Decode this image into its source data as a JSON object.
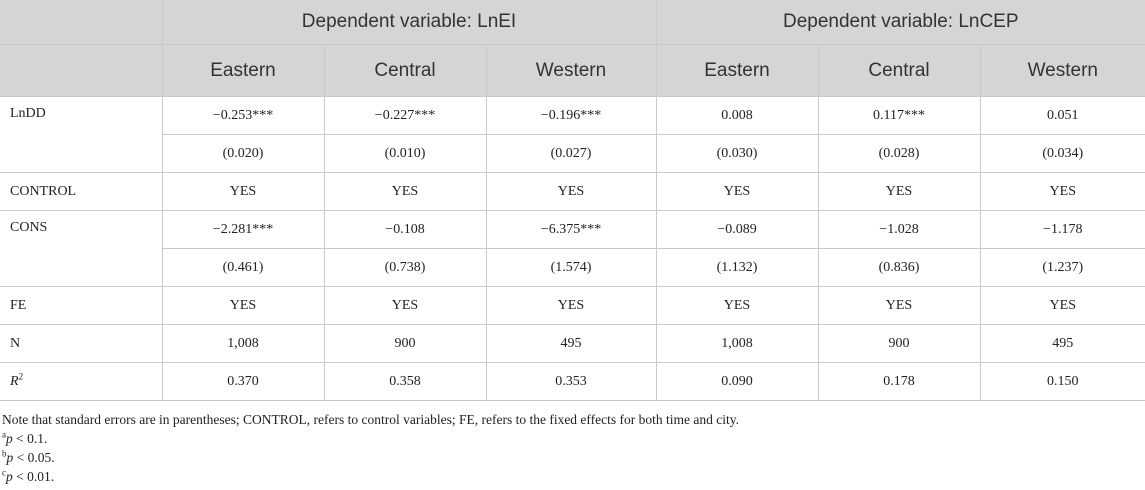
{
  "groups": [
    "Dependent variable: LnEI",
    "Dependent variable: LnCEP"
  ],
  "columns": [
    "Eastern",
    "Central",
    "Western",
    "Eastern",
    "Central",
    "Western"
  ],
  "rows": {
    "lndd": {
      "label": "LnDD",
      "coef": [
        "−0.253***",
        "−0.227***",
        "−0.196***",
        "0.008",
        "0.117***",
        "0.051"
      ],
      "se": [
        "(0.020)",
        "(0.010)",
        "(0.027)",
        "(0.030)",
        "(0.028)",
        "(0.034)"
      ]
    },
    "control": {
      "label": "CONTROL",
      "values": [
        "YES",
        "YES",
        "YES",
        "YES",
        "YES",
        "YES"
      ]
    },
    "cons": {
      "label": "CONS",
      "coef": [
        "−2.281***",
        "−0.108",
        "−6.375***",
        "−0.089",
        "−1.028",
        "−1.178"
      ],
      "se": [
        "(0.461)",
        "(0.738)",
        "(1.574)",
        "(1.132)",
        "(0.836)",
        "(1.237)"
      ]
    },
    "fe": {
      "label": "FE",
      "values": [
        "YES",
        "YES",
        "YES",
        "YES",
        "YES",
        "YES"
      ]
    },
    "n": {
      "label": "N",
      "values": [
        "1,008",
        "900",
        "495",
        "1,008",
        "900",
        "495"
      ]
    },
    "r2": {
      "label": "R",
      "sup": "2",
      "values": [
        "0.370",
        "0.358",
        "0.353",
        "0.090",
        "0.178",
        "0.150"
      ]
    }
  },
  "notes": {
    "main": "Note that standard errors are in parentheses; CONTROL, refers to control variables; FE, refers to the fixed effects for both time and city.",
    "items": [
      {
        "mark": "a",
        "p": "p",
        "text": " < 0.1."
      },
      {
        "mark": "b",
        "p": "p",
        "text": " < 0.05."
      },
      {
        "mark": "c",
        "p": "p",
        "text": " < 0.01."
      }
    ]
  }
}
